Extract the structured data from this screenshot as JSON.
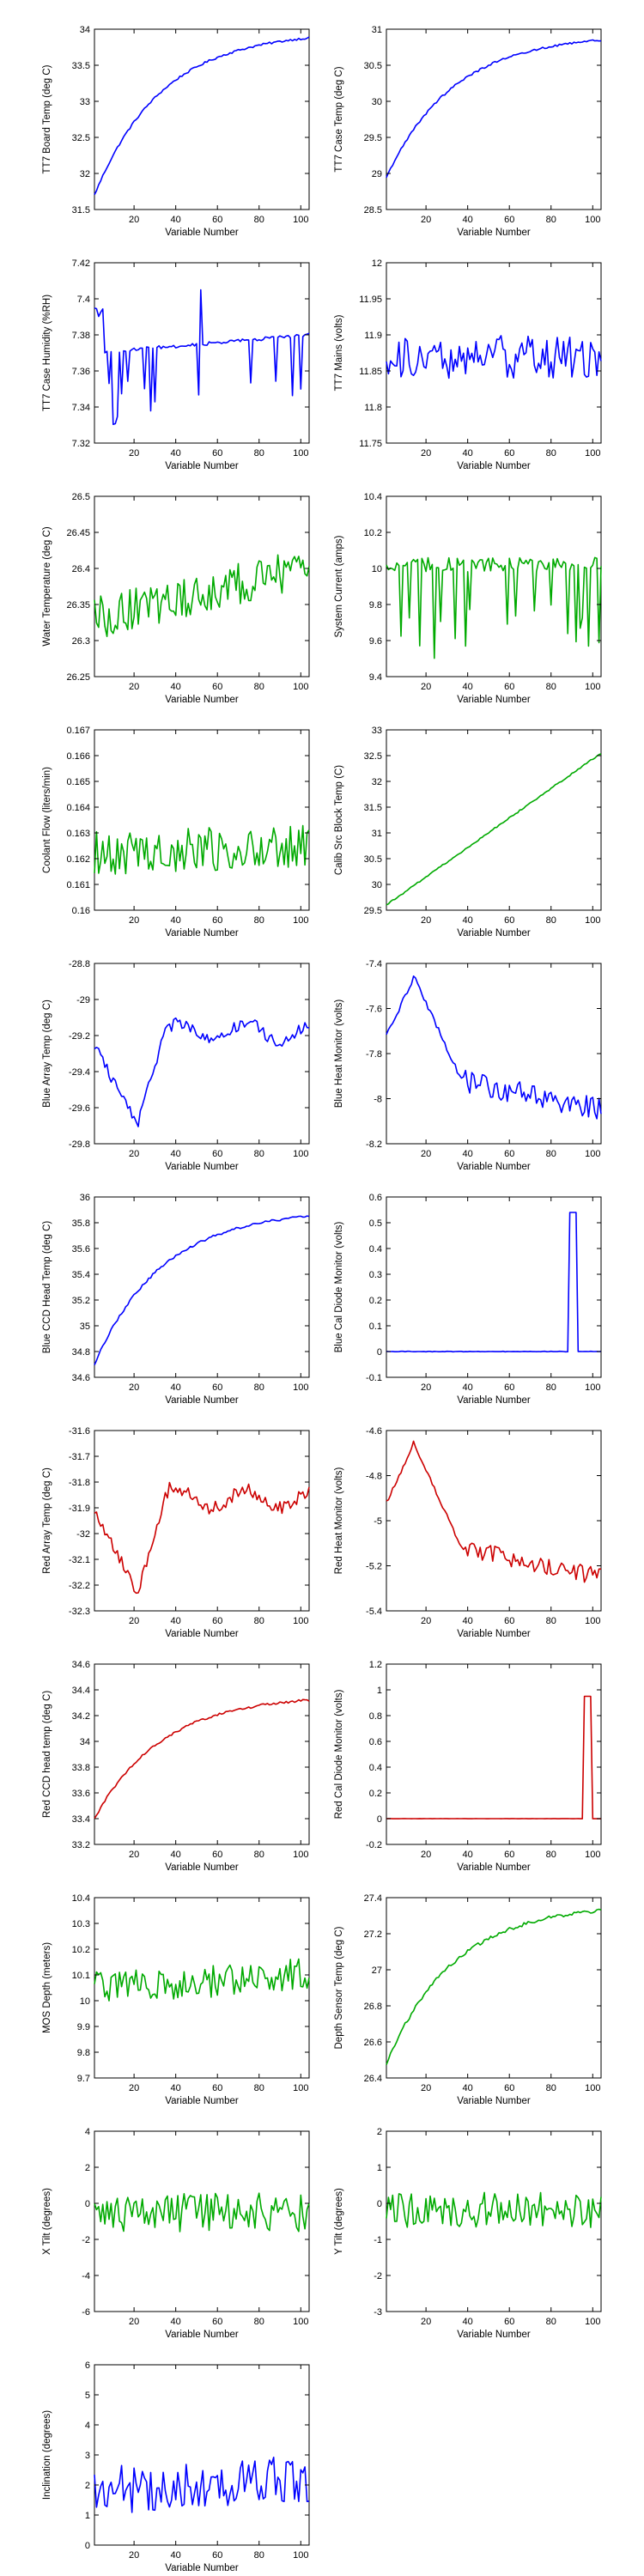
{
  "chart_data": [
    {
      "type": "line",
      "xlabel": "Variable Number",
      "ylabel": "TT7 Board Temp (deg C)",
      "color": "#0000ff",
      "xlim": [
        1,
        104
      ],
      "ylim": [
        31.5,
        34
      ],
      "xticks": [
        20,
        40,
        60,
        80,
        100
      ],
      "yticks": [
        "31.5",
        "32",
        "32.5",
        "33",
        "33.5",
        "34"
      ],
      "tick_values": [
        31.5,
        32,
        32.5,
        33,
        33.5,
        34
      ],
      "profile": "rise",
      "noise": 0.03,
      "start": 31.7,
      "end": 33.88
    },
    {
      "type": "line",
      "xlabel": "Variable Number",
      "ylabel": "TT7 Case Temp (deg C)",
      "color": "#0000ff",
      "xlim": [
        1,
        104
      ],
      "ylim": [
        28.5,
        31
      ],
      "xticks": [
        20,
        40,
        60,
        80,
        100
      ],
      "yticks": [
        "28.5",
        "29",
        "29.5",
        "30",
        "30.5",
        "31"
      ],
      "tick_values": [
        28.5,
        29,
        29.5,
        30,
        30.5,
        31
      ],
      "profile": "rise",
      "noise": 0.03,
      "start": 28.95,
      "end": 30.85
    },
    {
      "type": "line",
      "xlabel": "Variable Number",
      "ylabel": "TT7 Case Humidity (%RH)",
      "color": "#0000ff",
      "xlim": [
        1,
        104
      ],
      "ylim": [
        7.32,
        7.42
      ],
      "xticks": [
        20,
        40,
        60,
        80,
        100
      ],
      "yticks": [
        "7.32",
        "7.34",
        "7.36",
        "7.38",
        "7.4",
        "7.42"
      ],
      "tick_values": [
        7.32,
        7.34,
        7.36,
        7.38,
        7.4,
        7.42
      ],
      "profile": "humidity",
      "noise": 0.002,
      "start": 7.37,
      "end": 7.38
    },
    {
      "type": "line",
      "xlabel": "Variable Number",
      "ylabel": "TT7 Mains  (volts)",
      "color": "#0000ff",
      "xlim": [
        1,
        104
      ],
      "ylim": [
        11.75,
        12
      ],
      "xticks": [
        20,
        40,
        60,
        80,
        100
      ],
      "yticks": [
        "11.75",
        "11.8",
        "11.85",
        "11.9",
        "11.95",
        "12"
      ],
      "tick_values": [
        11.75,
        11.8,
        11.85,
        11.9,
        11.95,
        12
      ],
      "profile": "noise",
      "noise": 0.06,
      "start": 11.87,
      "end": 11.87
    },
    {
      "type": "line",
      "xlabel": "Variable Number",
      "ylabel": "Water Temperature (deg C)",
      "color": "#00aa00",
      "xlim": [
        1,
        104
      ],
      "ylim": [
        26.25,
        26.5
      ],
      "xticks": [
        20,
        40,
        60,
        80,
        100
      ],
      "yticks": [
        "26.25",
        "26.3",
        "26.35",
        "26.4",
        "26.45",
        "26.5"
      ],
      "tick_values": [
        26.25,
        26.3,
        26.35,
        26.4,
        26.45,
        26.5
      ],
      "profile": "noise",
      "noise": 0.06,
      "start": 26.33,
      "end": 26.4
    },
    {
      "type": "line",
      "xlabel": "Variable Number",
      "ylabel": "System Current (amps)",
      "color": "#00aa00",
      "xlim": [
        1,
        104
      ],
      "ylim": [
        9.4,
        10.4
      ],
      "xticks": [
        20,
        40,
        60,
        80,
        100
      ],
      "yticks": [
        "9.4",
        "9.6",
        "9.8",
        "10",
        "10.2",
        "10.4"
      ],
      "tick_values": [
        9.4,
        9.6,
        9.8,
        10,
        10.2,
        10.4
      ],
      "profile": "current",
      "noise": 0.08,
      "start": 10.02,
      "end": 10.02
    },
    {
      "type": "line",
      "xlabel": "Variable Number",
      "ylabel": "Coolant Flow (liters/min)",
      "color": "#00aa00",
      "xlim": [
        1,
        104
      ],
      "ylim": [
        0.16,
        0.167
      ],
      "xticks": [
        20,
        40,
        60,
        80,
        100
      ],
      "yticks": [
        "0.16",
        "0.161",
        "0.162",
        "0.163",
        "0.164",
        "0.165",
        "0.166",
        "0.167"
      ],
      "tick_values": [
        0.16,
        0.161,
        0.162,
        0.163,
        0.164,
        0.165,
        0.166,
        0.167
      ],
      "profile": "noise",
      "noise": 0.0017,
      "start": 0.1622,
      "end": 0.1625
    },
    {
      "type": "line",
      "xlabel": "Variable Number",
      "ylabel": "Calib Src Block Temp (C)",
      "color": "#00aa00",
      "xlim": [
        1,
        104
      ],
      "ylim": [
        29.5,
        33
      ],
      "xticks": [
        20,
        40,
        60,
        80,
        100
      ],
      "yticks": [
        "29.5",
        "30",
        "30.5",
        "31",
        "31.5",
        "32",
        "32.5",
        "33"
      ],
      "tick_values": [
        29.5,
        30,
        30.5,
        31,
        31.5,
        32,
        32.5,
        33
      ],
      "profile": "rise_linear",
      "noise": 0.03,
      "start": 29.6,
      "end": 32.55
    },
    {
      "type": "line",
      "xlabel": "Variable Number",
      "ylabel": "Blue Array Temp (deg C)",
      "color": "#0000ff",
      "xlim": [
        1,
        104
      ],
      "ylim": [
        -29.8,
        -28.8
      ],
      "xticks": [
        20,
        40,
        60,
        80,
        100
      ],
      "yticks": [
        "-29.8",
        "-29.6",
        "-29.4",
        "-29.2",
        "-29",
        "-28.8"
      ],
      "tick_values": [
        -29.8,
        -29.6,
        -29.4,
        -29.2,
        -29,
        -28.8
      ],
      "profile": "array",
      "noise": 0.07,
      "start": -29.4,
      "end": -29.05
    },
    {
      "type": "line",
      "xlabel": "Variable Number",
      "ylabel": "Blue Heat Monitor  (volts)",
      "color": "#0000ff",
      "xlim": [
        1,
        104
      ],
      "ylim": [
        -8.2,
        -7.4
      ],
      "xticks": [
        20,
        40,
        60,
        80,
        100
      ],
      "yticks": [
        "-8.2",
        "-8",
        "-7.8",
        "-7.6",
        "-7.4"
      ],
      "tick_values": [
        -8.2,
        -8,
        -7.8,
        -7.6,
        -7.4
      ],
      "profile": "heat",
      "noise": 0.1,
      "start": -7.75,
      "end": -8.05
    },
    {
      "type": "line",
      "xlabel": "Variable Number",
      "ylabel": "Blue CCD Head Temp (deg C)",
      "color": "#0000ff",
      "xlim": [
        1,
        104
      ],
      "ylim": [
        34.6,
        36
      ],
      "xticks": [
        20,
        40,
        60,
        80,
        100
      ],
      "yticks": [
        "34.6",
        "34.8",
        "35",
        "35.2",
        "35.4",
        "35.6",
        "35.8",
        "36"
      ],
      "tick_values": [
        34.6,
        34.8,
        35,
        35.2,
        35.4,
        35.6,
        35.8,
        36
      ],
      "profile": "rise",
      "noise": 0.02,
      "start": 34.7,
      "end": 35.85
    },
    {
      "type": "line",
      "xlabel": "Variable Number",
      "ylabel": "Blue Cal Diode Monitor  (volts)",
      "color": "#0000ff",
      "xlim": [
        1,
        104
      ],
      "ylim": [
        -0.1,
        0.6
      ],
      "xticks": [
        20,
        40,
        60,
        80,
        100
      ],
      "yticks": [
        "-0.1",
        "0",
        "0.1",
        "0.2",
        "0.3",
        "0.4",
        "0.5",
        "0.6"
      ],
      "tick_values": [
        -0.1,
        0,
        0.1,
        0.2,
        0.3,
        0.4,
        0.5,
        0.6
      ],
      "profile": "spike",
      "noise": 0.002,
      "start": 0,
      "end": 0,
      "spike_from": 89,
      "spike_to": 92,
      "spike_value": 0.54
    },
    {
      "type": "line",
      "xlabel": "Variable Number",
      "ylabel": "Red Array Temp (deg C)",
      "color": "#cc0000",
      "xlim": [
        1,
        104
      ],
      "ylim": [
        -32.3,
        -31.6
      ],
      "xticks": [
        20,
        40,
        60,
        80,
        100
      ],
      "yticks": [
        "-32.3",
        "-32.2",
        "-32.1",
        "-32",
        "-31.9",
        "-31.8",
        "-31.7",
        "-31.6"
      ],
      "tick_values": [
        -32.3,
        -32.2,
        -32.1,
        -32,
        -31.9,
        -31.8,
        -31.7,
        -31.6
      ],
      "profile": "array",
      "noise": 0.05,
      "start": -31.95,
      "end": -31.8
    },
    {
      "type": "line",
      "xlabel": "Variable Number",
      "ylabel": "Red Heat Monitor  (volts)",
      "color": "#cc0000",
      "xlim": [
        1,
        104
      ],
      "ylim": [
        -5.4,
        -4.6
      ],
      "xticks": [
        20,
        40,
        60,
        80,
        100
      ],
      "yticks": [
        "-5.4",
        "-5.2",
        "-5",
        "-4.8",
        "-4.6"
      ],
      "tick_values": [
        -5.4,
        -5.2,
        -5,
        -4.8,
        -4.6
      ],
      "profile": "heat",
      "noise": 0.08,
      "start": -4.95,
      "end": -5.05
    },
    {
      "type": "line",
      "xlabel": "Variable Number",
      "ylabel": "Red CCD head temp (deg C)",
      "color": "#cc0000",
      "xlim": [
        1,
        104
      ],
      "ylim": [
        33.2,
        34.6
      ],
      "xticks": [
        20,
        40,
        60,
        80,
        100
      ],
      "yticks": [
        "33.2",
        "33.4",
        "33.6",
        "33.8",
        "34",
        "34.2",
        "34.4",
        "34.6"
      ],
      "tick_values": [
        33.2,
        33.4,
        33.6,
        33.8,
        34,
        34.2,
        34.4,
        34.6
      ],
      "profile": "rise",
      "noise": 0.02,
      "start": 33.4,
      "end": 34.32
    },
    {
      "type": "line",
      "xlabel": "Variable Number",
      "ylabel": "Red Cal Diode Monitor  (volts)",
      "color": "#cc0000",
      "xlim": [
        1,
        104
      ],
      "ylim": [
        -0.2,
        1.2
      ],
      "xticks": [
        20,
        40,
        60,
        80,
        100
      ],
      "yticks": [
        "-0.2",
        "0",
        "0.2",
        "0.4",
        "0.6",
        "0.8",
        "1",
        "1.2"
      ],
      "tick_values": [
        -0.2,
        0,
        0.2,
        0.4,
        0.6,
        0.8,
        1,
        1.2
      ],
      "profile": "spike",
      "noise": 0.002,
      "start": 0,
      "end": 0,
      "spike_from": 96,
      "spike_to": 99,
      "spike_value": 0.95
    },
    {
      "type": "line",
      "xlabel": "Variable Number",
      "ylabel": "MOS Depth  (meters)",
      "color": "#00aa00",
      "xlim": [
        1,
        104
      ],
      "ylim": [
        9.7,
        10.4
      ],
      "xticks": [
        20,
        40,
        60,
        80,
        100
      ],
      "yticks": [
        "9.7",
        "9.8",
        "9.9",
        "10",
        "10.1",
        "10.2",
        "10.3",
        "10.4"
      ],
      "tick_values": [
        9.7,
        9.8,
        9.9,
        10,
        10.1,
        10.2,
        10.3,
        10.4
      ],
      "profile": "noise",
      "noise": 0.13,
      "start": 10.05,
      "end": 10.1
    },
    {
      "type": "line",
      "xlabel": "Variable Number",
      "ylabel": "Depth Sensor Temp (deg C)",
      "color": "#00aa00",
      "xlim": [
        1,
        104
      ],
      "ylim": [
        26.4,
        27.4
      ],
      "xticks": [
        20,
        40,
        60,
        80,
        100
      ],
      "yticks": [
        "26.4",
        "26.6",
        "26.8",
        "27",
        "27.2",
        "27.4"
      ],
      "tick_values": [
        26.4,
        26.6,
        26.8,
        27,
        27.2,
        27.4
      ],
      "profile": "rise",
      "noise": 0.02,
      "start": 26.48,
      "end": 27.33
    },
    {
      "type": "line",
      "xlabel": "Variable Number",
      "ylabel": "X Tilt  (degrees)",
      "color": "#00aa00",
      "xlim": [
        1,
        104
      ],
      "ylim": [
        -6,
        4
      ],
      "xticks": [
        20,
        40,
        60,
        80,
        100
      ],
      "yticks": [
        "-6",
        "-4",
        "-2",
        "0",
        "2",
        "4"
      ],
      "tick_values": [
        -6,
        -4,
        -2,
        0,
        2,
        4
      ],
      "profile": "tilt",
      "noise": 2.2,
      "start": -0.5,
      "end": -0.5
    },
    {
      "type": "line",
      "xlabel": "Variable Number",
      "ylabel": "Y Tilt  (degrees)",
      "color": "#00aa00",
      "xlim": [
        1,
        104
      ],
      "ylim": [
        -3,
        2
      ],
      "xticks": [
        20,
        40,
        60,
        80,
        100
      ],
      "yticks": [
        "-3",
        "-2",
        "-1",
        "0",
        "1",
        "2"
      ],
      "tick_values": [
        -3,
        -2,
        -1,
        0,
        1,
        2
      ],
      "profile": "tilt",
      "noise": 1.0,
      "start": -0.2,
      "end": -0.2
    },
    {
      "type": "line",
      "xlabel": "Variable Number",
      "ylabel": "Inclination  (degrees)",
      "color": "#0000ff",
      "xlim": [
        1,
        104
      ],
      "ylim": [
        0,
        6
      ],
      "xticks": [
        20,
        40,
        60,
        80,
        100
      ],
      "yticks": [
        "0",
        "1",
        "2",
        "3",
        "4",
        "5",
        "6"
      ],
      "tick_values": [
        0,
        1,
        2,
        3,
        4,
        5,
        6
      ],
      "profile": "incl",
      "noise": 1.6,
      "start": 1.8,
      "end": 2.2
    }
  ]
}
